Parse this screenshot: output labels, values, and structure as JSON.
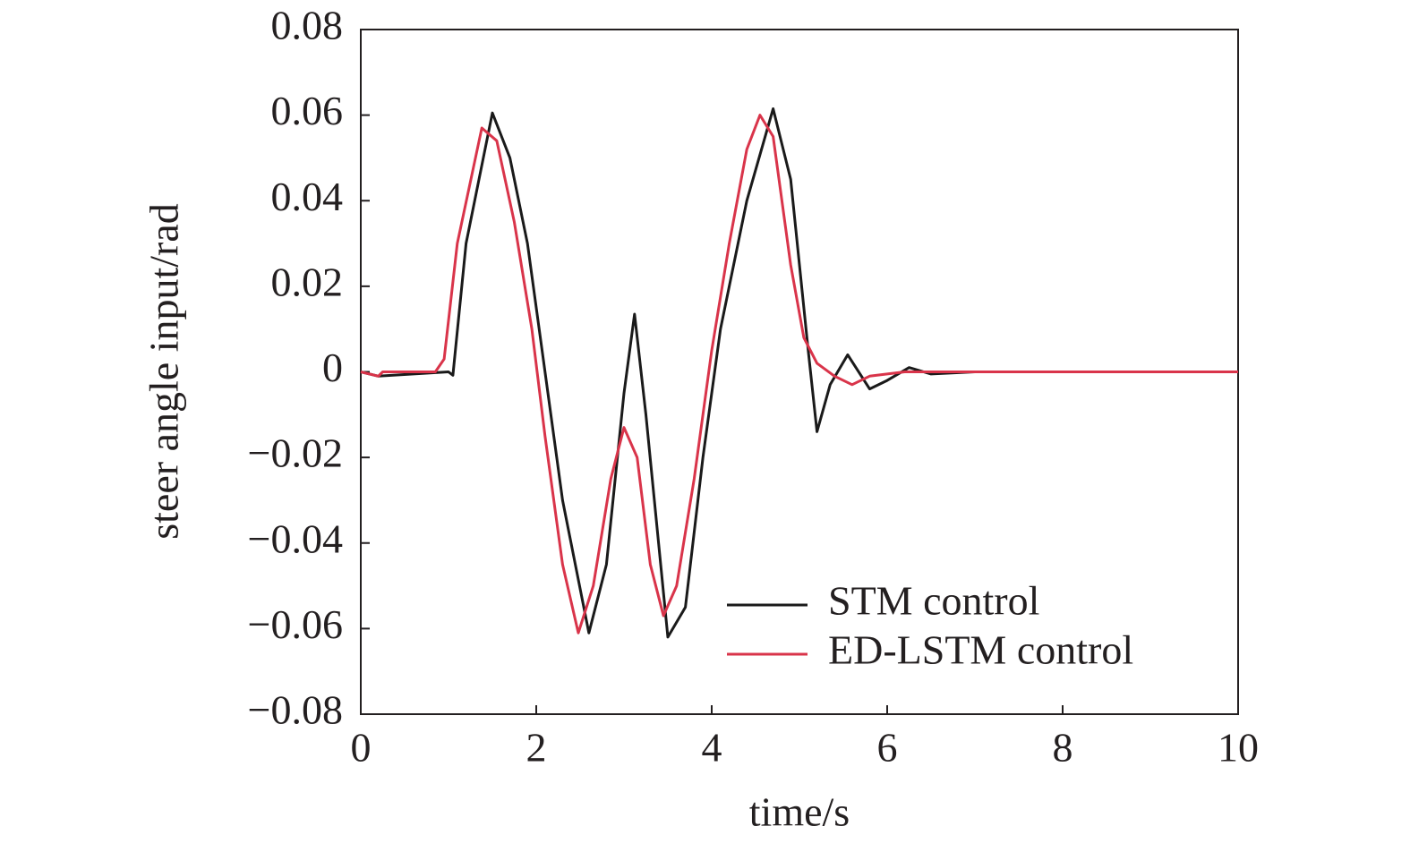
{
  "chart_data": {
    "type": "line",
    "x_label": "time/s",
    "y_label": "steer angle input/rad",
    "xlim": [
      0,
      10
    ],
    "xticks": [
      0,
      2,
      4,
      6,
      8,
      10
    ],
    "ylim": [
      -0.08,
      0.08
    ],
    "yticks": [
      {
        "value": -0.08,
        "label": "−0.08"
      },
      {
        "value": -0.06,
        "label": "−0.06"
      },
      {
        "value": -0.04,
        "label": "−0.04"
      },
      {
        "value": -0.02,
        "label": "−0.02"
      },
      0,
      0.02,
      0.04,
      0.06,
      0.08
    ],
    "legend": "lower right",
    "series": [
      {
        "name": "STM control",
        "color": "#1a1a1a",
        "x": [
          0,
          0.2,
          1.0,
          1.05,
          1.2,
          1.5,
          1.7,
          1.9,
          2.1,
          2.3,
          2.6,
          2.8,
          3.0,
          3.12,
          3.25,
          3.5,
          3.7,
          3.9,
          4.1,
          4.4,
          4.7,
          4.9,
          5.1,
          5.2,
          5.35,
          5.55,
          5.8,
          6.0,
          6.25,
          6.5,
          7,
          10
        ],
        "values": [
          0,
          -0.001,
          0,
          -0.0008,
          0.03,
          0.0605,
          0.05,
          0.03,
          0,
          -0.03,
          -0.061,
          -0.045,
          -0.005,
          0.0135,
          -0.01,
          -0.062,
          -0.055,
          -0.02,
          0.01,
          0.04,
          0.0615,
          0.045,
          0.005,
          -0.014,
          -0.003,
          0.004,
          -0.004,
          -0.002,
          0.001,
          -0.0005,
          0,
          0
        ]
      },
      {
        "name": "ED-LSTM control",
        "color": "#d9344a",
        "x": [
          0,
          0.2,
          0.25,
          0.85,
          0.95,
          1.1,
          1.38,
          1.55,
          1.75,
          1.95,
          2.1,
          2.3,
          2.48,
          2.65,
          2.85,
          3.0,
          3.15,
          3.3,
          3.45,
          3.6,
          3.8,
          4.0,
          4.2,
          4.4,
          4.55,
          4.7,
          4.9,
          5.05,
          5.2,
          5.4,
          5.6,
          5.8,
          6.2,
          10
        ],
        "values": [
          0,
          -0.001,
          0,
          0,
          0.003,
          0.03,
          0.057,
          0.054,
          0.035,
          0.01,
          -0.015,
          -0.045,
          -0.061,
          -0.05,
          -0.025,
          -0.013,
          -0.02,
          -0.045,
          -0.057,
          -0.05,
          -0.025,
          0.005,
          0.03,
          0.052,
          0.06,
          0.055,
          0.025,
          0.008,
          0.002,
          -0.001,
          -0.003,
          -0.001,
          0,
          0
        ]
      }
    ]
  }
}
